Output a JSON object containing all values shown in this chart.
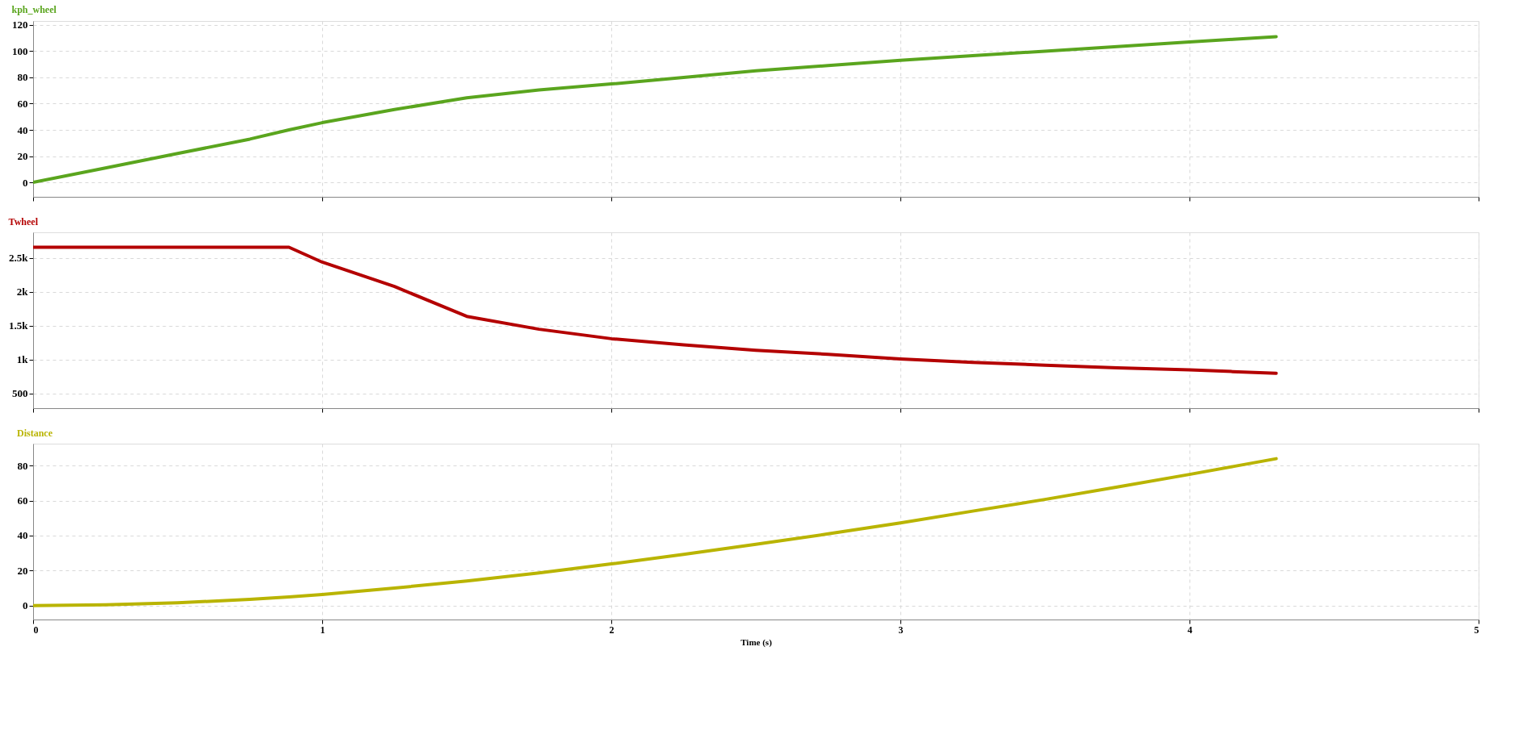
{
  "chart_data": [
    {
      "type": "line",
      "title": "kph_wheel",
      "x": [
        0,
        0.25,
        0.5,
        0.75,
        0.885,
        1,
        1.25,
        1.5,
        1.75,
        2,
        2.25,
        2.5,
        2.75,
        3,
        3.25,
        3.5,
        3.75,
        4,
        4.15,
        4.3
      ],
      "series": [
        {
          "color": "#5aa51e",
          "values": [
            0,
            11,
            22,
            33,
            40,
            45.5,
            55.5,
            64.5,
            70.5,
            75,
            80,
            85,
            89,
            93,
            96.5,
            100,
            103.5,
            107,
            109,
            111
          ]
        }
      ],
      "xlim": [
        0,
        5
      ],
      "xticks": [
        0,
        1,
        2,
        3,
        4,
        5
      ],
      "ylim": [
        -11,
        123
      ],
      "yticks": [
        0,
        20,
        40,
        60,
        80,
        100,
        120
      ],
      "grid": true,
      "line_style": "solid",
      "tick_labels": "y"
    },
    {
      "type": "line",
      "title": "Twheel",
      "x": [
        0,
        0.25,
        0.5,
        0.75,
        0.885,
        1,
        1.25,
        1.5,
        1.75,
        2,
        2.25,
        2.5,
        2.75,
        3,
        3.25,
        3.5,
        3.75,
        4,
        4.15,
        4.3
      ],
      "series": [
        {
          "color": "#b40000",
          "values": [
            2660,
            2660,
            2660,
            2660,
            2660,
            2440,
            2080,
            1640,
            1450,
            1310,
            1220,
            1140,
            1080,
            1010,
            960,
            920,
            880,
            850,
            825,
            800
          ]
        }
      ],
      "xlim": [
        0,
        5
      ],
      "xticks": [
        0,
        1,
        2,
        3,
        4,
        5
      ],
      "ylim": [
        285,
        2880
      ],
      "yticks": [
        500,
        {
          "value": 1000,
          "label": "1k"
        },
        {
          "value": 1500,
          "label": "1.5k"
        },
        {
          "value": 2000,
          "label": "2k"
        },
        {
          "value": 2500,
          "label": "2.5k"
        }
      ],
      "grid": true,
      "line_style": "solid",
      "tick_labels": "y"
    },
    {
      "type": "line",
      "title": "Distance",
      "xlabel": "Time (s)",
      "x": [
        0,
        0.25,
        0.5,
        0.75,
        0.885,
        1,
        1.25,
        1.5,
        1.75,
        2,
        2.25,
        2.5,
        2.75,
        3,
        3.25,
        3.5,
        3.75,
        4,
        4.15,
        4.3
      ],
      "series": [
        {
          "color": "#b9b400",
          "values": [
            0,
            0.4,
            1.6,
            3.5,
            4.9,
            6.3,
            10,
            14,
            18.7,
            23.8,
            29.3,
            35,
            41,
            47.3,
            54,
            60.7,
            67.8,
            75,
            79.5,
            84
          ]
        }
      ],
      "xlim": [
        0,
        5
      ],
      "xticks": [
        0,
        1,
        2,
        3,
        4,
        5
      ],
      "ylim": [
        -8,
        92.6
      ],
      "yticks": [
        0,
        20,
        40,
        60,
        80
      ],
      "grid": true,
      "line_style": "solid"
    }
  ]
}
